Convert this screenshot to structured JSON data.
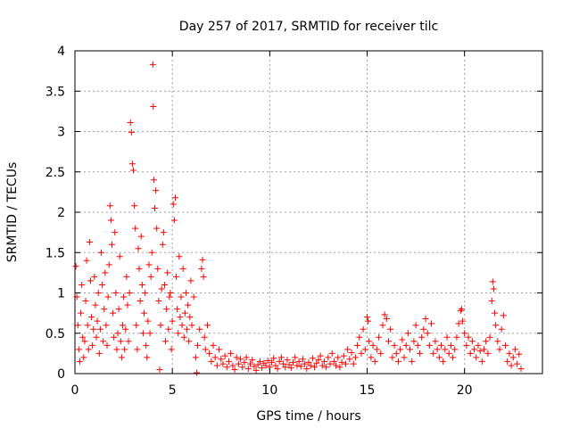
{
  "chart_data": {
    "type": "scatter",
    "title": "Day 257 of 2017, SRMTID for receiver tilc",
    "xlabel": "GPS time / hours",
    "ylabel": "SRMTID / TECUs",
    "xlim": [
      0,
      24
    ],
    "ylim": [
      0,
      4
    ],
    "x_ticks": [
      0,
      5,
      10,
      15,
      20
    ],
    "x_tick_labels": [
      "0",
      "5",
      "10",
      "15",
      "20"
    ],
    "y_ticks": [
      0,
      0.5,
      1,
      1.5,
      2,
      2.5,
      3,
      3.5,
      4
    ],
    "y_tick_labels": [
      "0",
      "0.5",
      "1",
      "1.5",
      "2",
      "2.5",
      "3",
      "3.5",
      "4"
    ],
    "grid": true,
    "marker": "plus",
    "series": [
      {
        "name": "SRMTID",
        "color": "#ff0000",
        "points": [
          [
            0.05,
            1.33
          ],
          [
            0.1,
            0.95
          ],
          [
            0.15,
            0.6
          ],
          [
            0.2,
            0.3
          ],
          [
            0.25,
            0.15
          ],
          [
            0.3,
            0.75
          ],
          [
            0.35,
            1.1
          ],
          [
            0.4,
            0.45
          ],
          [
            0.45,
            0.2
          ],
          [
            0.5,
            0.4
          ],
          [
            0.55,
            0.9
          ],
          [
            0.6,
            1.4
          ],
          [
            0.65,
            0.6
          ],
          [
            0.7,
            0.3
          ],
          [
            0.75,
            1.63
          ],
          [
            0.8,
            1.15
          ],
          [
            0.85,
            0.7
          ],
          [
            0.9,
            0.35
          ],
          [
            0.95,
            0.55
          ],
          [
            1.0,
            1.2
          ],
          [
            1.05,
            0.85
          ],
          [
            1.1,
            0.45
          ],
          [
            1.15,
            0.65
          ],
          [
            1.2,
            1.0
          ],
          [
            1.25,
            0.25
          ],
          [
            1.3,
            0.55
          ],
          [
            1.35,
            1.5
          ],
          [
            1.4,
            1.1
          ],
          [
            1.45,
            0.4
          ],
          [
            1.5,
            0.8
          ],
          [
            1.55,
            1.25
          ],
          [
            1.6,
            0.6
          ],
          [
            1.65,
            0.35
          ],
          [
            1.7,
            0.95
          ],
          [
            1.75,
            1.35
          ],
          [
            1.8,
            2.08
          ],
          [
            1.85,
            1.9
          ],
          [
            1.9,
            1.6
          ],
          [
            1.95,
            0.75
          ],
          [
            2.0,
            0.45
          ],
          [
            2.05,
            1.75
          ],
          [
            2.1,
            1.0
          ],
          [
            2.15,
            0.3
          ],
          [
            2.2,
            0.5
          ],
          [
            2.25,
            0.8
          ],
          [
            2.3,
            1.45
          ],
          [
            2.35,
            0.4
          ],
          [
            2.4,
            0.2
          ],
          [
            2.45,
            0.6
          ],
          [
            2.5,
            0.95
          ],
          [
            2.55,
            0.3
          ],
          [
            2.6,
            0.55
          ],
          [
            2.65,
            1.2
          ],
          [
            2.7,
            0.85
          ],
          [
            2.75,
            0.4
          ],
          [
            2.8,
            1.0
          ],
          [
            2.85,
            3.11
          ],
          [
            2.9,
            2.99
          ],
          [
            2.95,
            2.6
          ],
          [
            3.0,
            2.52
          ],
          [
            3.05,
            2.08
          ],
          [
            3.1,
            1.8
          ],
          [
            3.15,
            0.6
          ],
          [
            3.2,
            0.3
          ],
          [
            3.25,
            1.55
          ],
          [
            3.3,
            1.3
          ],
          [
            3.35,
            0.9
          ],
          [
            3.4,
            1.7
          ],
          [
            3.45,
            1.1
          ],
          [
            3.5,
            0.5
          ],
          [
            3.55,
            0.75
          ],
          [
            3.6,
            1.0
          ],
          [
            3.65,
            0.35
          ],
          [
            3.7,
            0.2
          ],
          [
            3.75,
            0.65
          ],
          [
            3.8,
            1.35
          ],
          [
            3.85,
            0.5
          ],
          [
            3.9,
            1.2
          ],
          [
            3.95,
            1.5
          ],
          [
            4.0,
            3.83
          ],
          [
            4.02,
            3.31
          ],
          [
            4.05,
            2.4
          ],
          [
            4.1,
            2.05
          ],
          [
            4.15,
            2.27
          ],
          [
            4.2,
            1.8
          ],
          [
            4.25,
            1.3
          ],
          [
            4.3,
            0.9
          ],
          [
            4.35,
            0.05
          ],
          [
            4.4,
            0.6
          ],
          [
            4.45,
            1.05
          ],
          [
            4.5,
            1.6
          ],
          [
            4.55,
            1.75
          ],
          [
            4.6,
            1.1
          ],
          [
            4.65,
            0.4
          ],
          [
            4.7,
            0.8
          ],
          [
            4.75,
            1.25
          ],
          [
            4.8,
            0.55
          ],
          [
            4.85,
            0.95
          ],
          [
            4.9,
            1.0
          ],
          [
            4.95,
            0.3
          ],
          [
            5.0,
            0.65
          ],
          [
            5.05,
            2.1
          ],
          [
            5.1,
            1.9
          ],
          [
            5.15,
            2.18
          ],
          [
            5.2,
            1.2
          ],
          [
            5.25,
            0.8
          ],
          [
            5.3,
            0.5
          ],
          [
            5.35,
            1.45
          ],
          [
            5.4,
            0.7
          ],
          [
            5.45,
            0.95
          ],
          [
            5.5,
            0.6
          ],
          [
            5.55,
            1.3
          ],
          [
            5.6,
            0.45
          ],
          [
            5.65,
            0.75
          ],
          [
            5.7,
            1.0
          ],
          [
            5.75,
            0.55
          ],
          [
            5.8,
            0.85
          ],
          [
            5.85,
            0.4
          ],
          [
            5.9,
            0.7
          ],
          [
            5.95,
            1.15
          ],
          [
            6.0,
            0.6
          ],
          [
            6.1,
            0.95
          ],
          [
            6.2,
            0.2
          ],
          [
            6.25,
            0.01
          ],
          [
            6.3,
            0.35
          ],
          [
            6.4,
            0.55
          ],
          [
            6.5,
            1.3
          ],
          [
            6.55,
            1.41
          ],
          [
            6.6,
            1.2
          ],
          [
            6.65,
            0.45
          ],
          [
            6.7,
            0.3
          ],
          [
            6.8,
            0.6
          ],
          [
            6.9,
            0.25
          ],
          [
            7.0,
            0.15
          ],
          [
            7.1,
            0.35
          ],
          [
            7.2,
            0.2
          ],
          [
            7.3,
            0.1
          ],
          [
            7.4,
            0.3
          ],
          [
            7.5,
            0.18
          ],
          [
            7.6,
            0.12
          ],
          [
            7.7,
            0.22
          ],
          [
            7.8,
            0.08
          ],
          [
            7.9,
            0.15
          ],
          [
            8.0,
            0.25
          ],
          [
            8.1,
            0.1
          ],
          [
            8.2,
            0.05
          ],
          [
            8.3,
            0.2
          ],
          [
            8.4,
            0.12
          ],
          [
            8.5,
            0.18
          ],
          [
            8.6,
            0.08
          ],
          [
            8.7,
            0.14
          ],
          [
            8.8,
            0.2
          ],
          [
            8.9,
            0.06
          ],
          [
            9.0,
            0.12
          ],
          [
            9.1,
            0.17
          ],
          [
            9.2,
            0.09
          ],
          [
            9.3,
            0.04
          ],
          [
            9.4,
            0.11
          ],
          [
            9.5,
            0.15
          ],
          [
            9.6,
            0.07
          ],
          [
            9.7,
            0.13
          ],
          [
            9.8,
            0.1
          ],
          [
            9.9,
            0.16
          ],
          [
            10.0,
            0.08
          ],
          [
            10.1,
            0.14
          ],
          [
            10.2,
            0.19
          ],
          [
            10.3,
            0.1
          ],
          [
            10.4,
            0.06
          ],
          [
            10.5,
            0.15
          ],
          [
            10.6,
            0.2
          ],
          [
            10.7,
            0.12
          ],
          [
            10.8,
            0.08
          ],
          [
            10.9,
            0.17
          ],
          [
            11.0,
            0.11
          ],
          [
            11.1,
            0.07
          ],
          [
            11.2,
            0.14
          ],
          [
            11.3,
            0.2
          ],
          [
            11.4,
            0.1
          ],
          [
            11.5,
            0.15
          ],
          [
            11.6,
            0.09
          ],
          [
            11.7,
            0.18
          ],
          [
            11.8,
            0.12
          ],
          [
            11.9,
            0.06
          ],
          [
            12.0,
            0.14
          ],
          [
            12.1,
            0.1
          ],
          [
            12.2,
            0.19
          ],
          [
            12.3,
            0.08
          ],
          [
            12.4,
            0.13
          ],
          [
            12.5,
            0.17
          ],
          [
            12.6,
            0.22
          ],
          [
            12.7,
            0.1
          ],
          [
            12.8,
            0.15
          ],
          [
            12.9,
            0.08
          ],
          [
            13.0,
            0.2
          ],
          [
            13.1,
            0.12
          ],
          [
            13.2,
            0.25
          ],
          [
            13.3,
            0.15
          ],
          [
            13.4,
            0.1
          ],
          [
            13.5,
            0.2
          ],
          [
            13.6,
            0.08
          ],
          [
            13.7,
            0.14
          ],
          [
            13.8,
            0.22
          ],
          [
            13.9,
            0.12
          ],
          [
            14.0,
            0.3
          ],
          [
            14.1,
            0.18
          ],
          [
            14.2,
            0.26
          ],
          [
            14.3,
            0.12
          ],
          [
            14.4,
            0.2
          ],
          [
            14.5,
            0.35
          ],
          [
            14.6,
            0.45
          ],
          [
            14.7,
            0.25
          ],
          [
            14.8,
            0.55
          ],
          [
            14.9,
            0.3
          ],
          [
            15.0,
            0.7
          ],
          [
            15.05,
            0.65
          ],
          [
            15.1,
            0.4
          ],
          [
            15.2,
            0.2
          ],
          [
            15.3,
            0.35
          ],
          [
            15.4,
            0.15
          ],
          [
            15.5,
            0.3
          ],
          [
            15.6,
            0.45
          ],
          [
            15.7,
            0.25
          ],
          [
            15.8,
            0.6
          ],
          [
            15.9,
            0.73
          ],
          [
            16.0,
            0.68
          ],
          [
            16.1,
            0.4
          ],
          [
            16.2,
            0.55
          ],
          [
            16.3,
            0.2
          ],
          [
            16.4,
            0.35
          ],
          [
            16.5,
            0.25
          ],
          [
            16.6,
            0.15
          ],
          [
            16.7,
            0.3
          ],
          [
            16.8,
            0.42
          ],
          [
            16.9,
            0.2
          ],
          [
            17.0,
            0.35
          ],
          [
            17.1,
            0.5
          ],
          [
            17.2,
            0.3
          ],
          [
            17.3,
            0.15
          ],
          [
            17.4,
            0.4
          ],
          [
            17.5,
            0.6
          ],
          [
            17.6,
            0.35
          ],
          [
            17.7,
            0.25
          ],
          [
            17.8,
            0.45
          ],
          [
            17.9,
            0.55
          ],
          [
            18.0,
            0.68
          ],
          [
            18.1,
            0.5
          ],
          [
            18.2,
            0.35
          ],
          [
            18.3,
            0.62
          ],
          [
            18.4,
            0.25
          ],
          [
            18.5,
            0.4
          ],
          [
            18.6,
            0.3
          ],
          [
            18.7,
            0.2
          ],
          [
            18.8,
            0.35
          ],
          [
            18.9,
            0.15
          ],
          [
            19.0,
            0.3
          ],
          [
            19.1,
            0.45
          ],
          [
            19.2,
            0.25
          ],
          [
            19.3,
            0.35
          ],
          [
            19.4,
            0.2
          ],
          [
            19.5,
            0.3
          ],
          [
            19.6,
            0.45
          ],
          [
            19.7,
            0.62
          ],
          [
            19.8,
            0.78
          ],
          [
            19.85,
            0.8
          ],
          [
            19.9,
            0.65
          ],
          [
            20.0,
            0.5
          ],
          [
            20.1,
            0.35
          ],
          [
            20.2,
            0.45
          ],
          [
            20.3,
            0.25
          ],
          [
            20.4,
            0.4
          ],
          [
            20.5,
            0.3
          ],
          [
            20.6,
            0.2
          ],
          [
            20.7,
            0.35
          ],
          [
            20.8,
            0.28
          ],
          [
            20.9,
            0.15
          ],
          [
            21.0,
            0.3
          ],
          [
            21.1,
            0.4
          ],
          [
            21.2,
            0.25
          ],
          [
            21.3,
            0.45
          ],
          [
            21.4,
            0.9
          ],
          [
            21.45,
            1.14
          ],
          [
            21.5,
            1.05
          ],
          [
            21.55,
            0.75
          ],
          [
            21.6,
            0.6
          ],
          [
            21.7,
            0.4
          ],
          [
            21.8,
            0.3
          ],
          [
            21.9,
            0.55
          ],
          [
            22.0,
            0.72
          ],
          [
            22.1,
            0.35
          ],
          [
            22.2,
            0.15
          ],
          [
            22.3,
            0.25
          ],
          [
            22.4,
            0.1
          ],
          [
            22.5,
            0.2
          ],
          [
            22.6,
            0.3
          ],
          [
            22.7,
            0.12
          ],
          [
            22.8,
            0.24
          ],
          [
            22.9,
            0.06
          ]
        ]
      }
    ]
  }
}
